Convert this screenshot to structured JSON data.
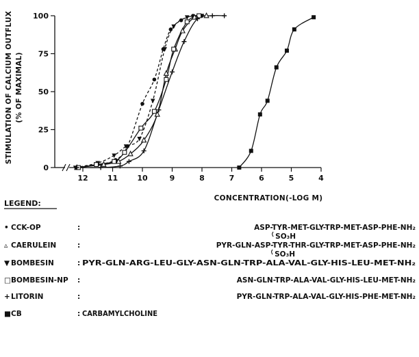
{
  "chart_data": {
    "type": "line",
    "title": "",
    "ylabel_line1": "STIMULATION OF CALCIUM OUTFLUX",
    "ylabel_line2": "(% OF MAXIMAL)",
    "xlabel": "CONCENTRATION(-LOG M)",
    "xlim": [
      12.6,
      4
    ],
    "ylim": [
      0,
      100
    ],
    "x_axis_reversed": true,
    "x_ticks": [
      "12",
      "11",
      "10",
      "9",
      "8",
      "7",
      "6",
      "5",
      "4"
    ],
    "y_ticks": [
      "0",
      "25",
      "50",
      "75",
      "100"
    ],
    "axis_break": true,
    "grid": false,
    "series": [
      {
        "name": "CCK-OP",
        "marker": "filled-circle",
        "line": "dashed",
        "points": [
          [
            12.2,
            0
          ],
          [
            11.5,
            2
          ],
          [
            10.9,
            5
          ],
          [
            10.5,
            14
          ],
          [
            10.0,
            42
          ],
          [
            9.6,
            58
          ],
          [
            9.3,
            78
          ],
          [
            9.05,
            91
          ],
          [
            8.7,
            97
          ],
          [
            8.3,
            100
          ],
          [
            8.0,
            100
          ]
        ]
      },
      {
        "name": "CAERULEIN",
        "marker": "open-triangle",
        "line": "solid",
        "points": [
          [
            12.2,
            0
          ],
          [
            11.3,
            2
          ],
          [
            10.8,
            4
          ],
          [
            10.4,
            9
          ],
          [
            9.95,
            18
          ],
          [
            9.5,
            35
          ],
          [
            9.2,
            62
          ],
          [
            8.9,
            78
          ],
          [
            8.65,
            90
          ],
          [
            8.25,
            99
          ],
          [
            7.85,
            100
          ]
        ]
      },
      {
        "name": "BOMBESIN",
        "marker": "filled-down-triangle",
        "line": "dashed",
        "points": [
          [
            12.25,
            0
          ],
          [
            11.5,
            3
          ],
          [
            10.95,
            8
          ],
          [
            10.55,
            14
          ],
          [
            10.1,
            19
          ],
          [
            9.65,
            44
          ],
          [
            9.25,
            78
          ],
          [
            8.95,
            93
          ],
          [
            8.5,
            99
          ],
          [
            8.0,
            100
          ]
        ]
      },
      {
        "name": "BOMBESIN-NP",
        "marker": "open-square",
        "line": "solid",
        "points": [
          [
            12.15,
            0
          ],
          [
            11.55,
            2
          ],
          [
            10.95,
            4
          ],
          [
            10.6,
            10
          ],
          [
            10.05,
            26
          ],
          [
            9.6,
            37
          ],
          [
            9.2,
            58
          ],
          [
            8.95,
            78
          ],
          [
            8.5,
            96
          ],
          [
            8.1,
            100
          ]
        ]
      },
      {
        "name": "LITORIN",
        "marker": "plus",
        "line": "solid",
        "points": [
          [
            12.2,
            0
          ],
          [
            11.4,
            0
          ],
          [
            10.75,
            1
          ],
          [
            10.45,
            4
          ],
          [
            9.95,
            11
          ],
          [
            9.45,
            38
          ],
          [
            9.0,
            63
          ],
          [
            8.6,
            83
          ],
          [
            8.15,
            98
          ],
          [
            7.65,
            100
          ],
          [
            7.25,
            100
          ]
        ]
      },
      {
        "name": "CB",
        "marker": "filled-square",
        "line": "solid",
        "points": [
          [
            6.75,
            0
          ],
          [
            6.35,
            11
          ],
          [
            6.05,
            35
          ],
          [
            5.8,
            44
          ],
          [
            5.5,
            66
          ],
          [
            5.15,
            77
          ],
          [
            4.9,
            91
          ],
          [
            4.25,
            99
          ]
        ]
      }
    ]
  },
  "legend": {
    "heading": "LEGEND:",
    "entries": [
      {
        "symbol": "•",
        "name": "CCK-OP",
        "sep": ":",
        "sequence": "ASP-TYR-MET-GLY-TRP-MET-ASP-PHE-NH₂",
        "modifier": "SO₃H"
      },
      {
        "symbol": "▵",
        "name": "CAERULEIN",
        "sep": ":",
        "sequence": "PYR-GLN-ASP-TYR-THR-GLY-TRP-MET-ASP-PHE-NH₂",
        "modifier": "SO₃H"
      },
      {
        "symbol": "▼",
        "name": "BOMBESIN",
        "sep": ":",
        "sequence": "PYR-GLN-ARG-LEU-GLY-ASN-GLN-TRP-ALA-VAL-GLY-HIS-LEU-MET-NH₂"
      },
      {
        "symbol": "□",
        "name": "BOMBESIN-NP",
        "sep": ":",
        "sequence": "ASN-GLN-TRP-ALA-VAL-GLY-HIS-LEU-MET-NH₂"
      },
      {
        "symbol": "+",
        "name": "LITORIN",
        "sep": ":",
        "sequence": "PYR-GLN-TRP-ALA-VAL-GLY-HIS-PHE-MET-NH₂"
      },
      {
        "symbol": "■",
        "name": "CB",
        "sep": ":",
        "sequence": "CARBAMYLCHOLINE"
      }
    ]
  }
}
